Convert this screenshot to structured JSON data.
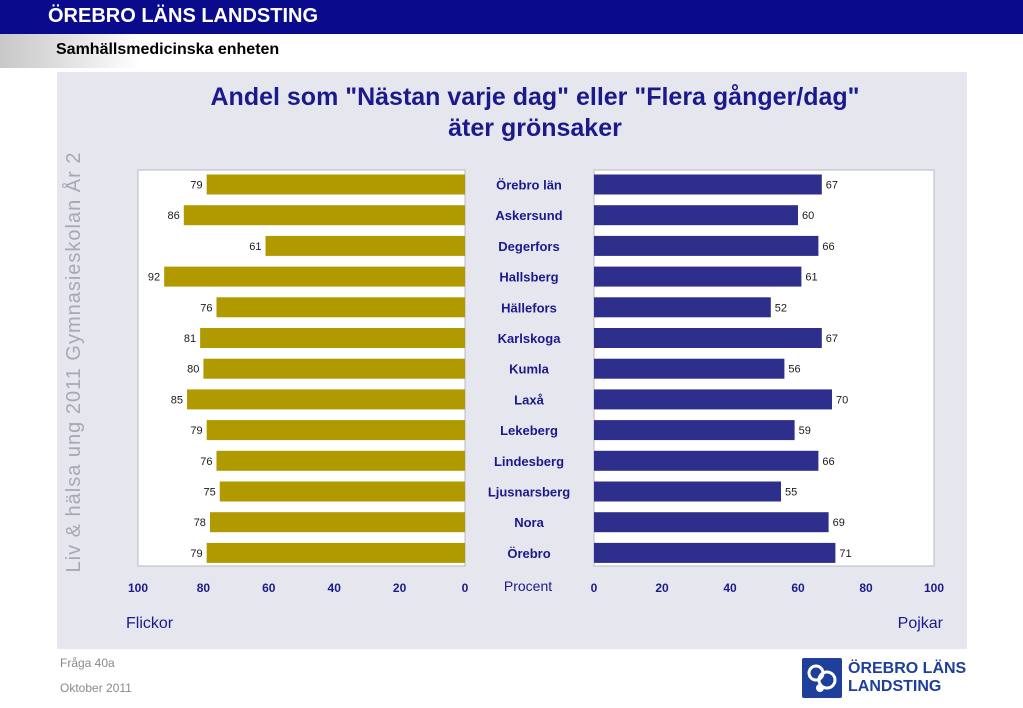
{
  "header": {
    "title": "ÖREBRO LÄNS LANDSTING",
    "subtitle": "Samhällsmedicinska enheten"
  },
  "side_label": "Liv & hälsa ung 2011 Gymnasieskolan År 2",
  "footer": {
    "question": "Fråga 40a",
    "date": "Oktober 2011"
  },
  "logo": {
    "line1": "ÖREBRO LÄNS",
    "line2": "LANDSTING",
    "icon": "landsting-logo-icon"
  },
  "chart_data": {
    "type": "bar",
    "orientation": "horizontal-butterfly",
    "title_line1": "Andel som \"Nästan varje dag\" eller \"Flera gånger/dag\"",
    "title_line2": "äter grönsaker",
    "xlabel": "Procent",
    "xlim": [
      0,
      100
    ],
    "ticks": [
      0,
      20,
      40,
      60,
      80,
      100
    ],
    "categories": [
      "Örebro län",
      "Askersund",
      "Degerfors",
      "Hallsberg",
      "Hällefors",
      "Karlskoga",
      "Kumla",
      "Laxå",
      "Lekeberg",
      "Lindesberg",
      "Ljusnarsberg",
      "Nora",
      "Örebro"
    ],
    "series": [
      {
        "name": "Flickor",
        "color": "#b09a00",
        "values": [
          79,
          86,
          61,
          92,
          76,
          81,
          80,
          85,
          79,
          76,
          75,
          78,
          79
        ]
      },
      {
        "name": "Pojkar",
        "color": "#2e2e8c",
        "values": [
          67,
          60,
          66,
          61,
          52,
          67,
          56,
          70,
          59,
          66,
          55,
          69,
          71
        ]
      }
    ],
    "colors": {
      "label": "#1a1a8c",
      "plot_bg": "#ffffff",
      "panel_bg": "#e6e6ee"
    }
  }
}
